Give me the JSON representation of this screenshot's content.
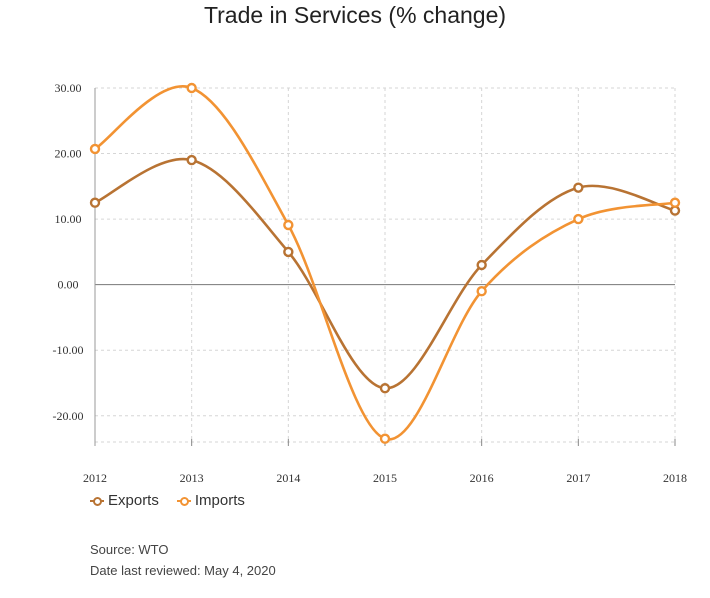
{
  "title": "Trade in Services (% change)",
  "chart_data": {
    "type": "line",
    "title": "Trade in Services (% change)",
    "x": [
      "2012",
      "2013",
      "2014",
      "2015",
      "2016",
      "2017",
      "2018"
    ],
    "ylim": [
      -24,
      30
    ],
    "yticks": [
      "30.00",
      "20.00",
      "10.00",
      "0.00",
      "-10.00",
      "-20.00"
    ],
    "ytick_values": [
      30,
      20,
      10,
      0,
      -10,
      -20
    ],
    "grid": true,
    "legend_position": "bottom-left",
    "series": [
      {
        "name": "Exports",
        "color": "#b87333",
        "values": [
          12.5,
          19.0,
          5.0,
          -15.8,
          3.0,
          14.8,
          11.3
        ]
      },
      {
        "name": "Imports",
        "color": "#f29333",
        "values": [
          20.7,
          30.0,
          9.1,
          -23.5,
          -1.0,
          10.0,
          12.5
        ]
      }
    ]
  },
  "legend": {
    "exports": "Exports",
    "imports": "Imports"
  },
  "footer": {
    "source": "Source: WTO",
    "reviewed": "Date last reviewed: May 4, 2020"
  }
}
